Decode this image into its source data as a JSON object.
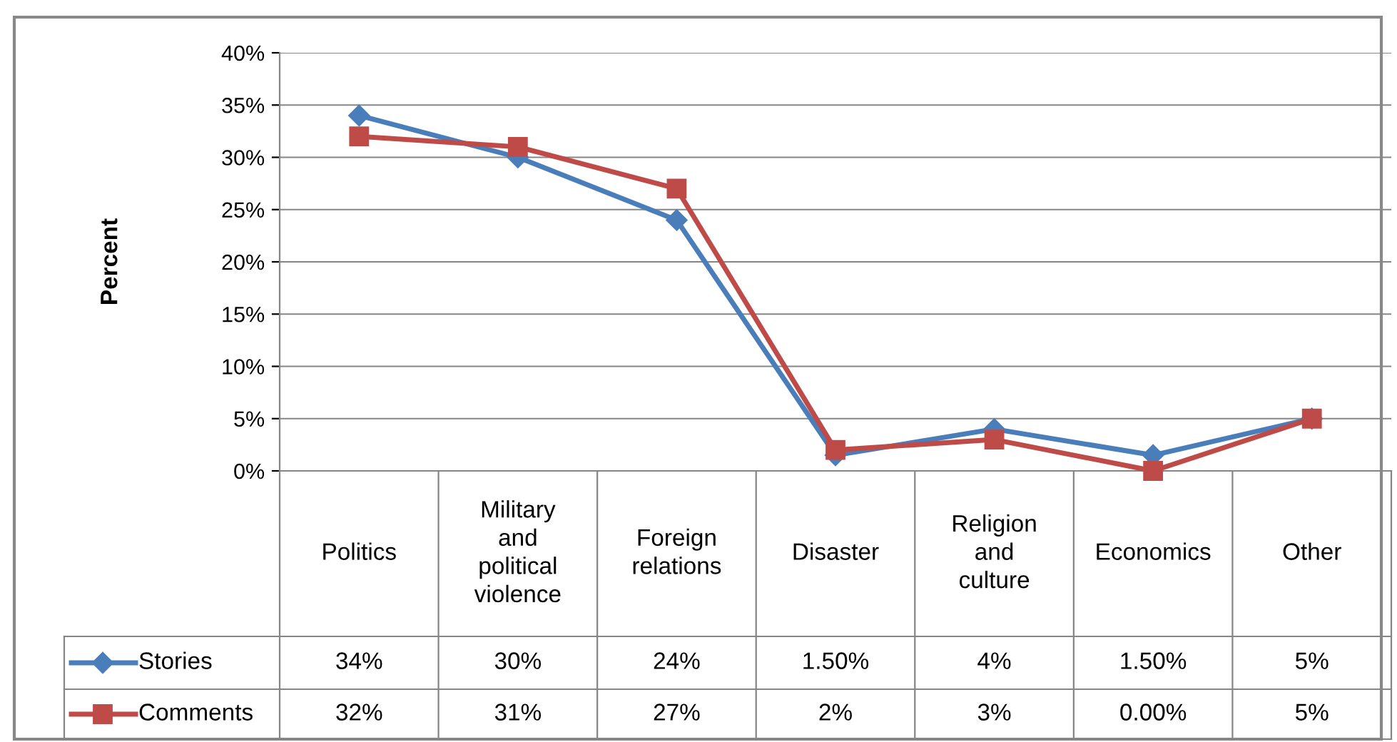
{
  "chart_data": {
    "type": "line",
    "ylabel": "Percent",
    "categories": [
      "Politics",
      "Military and political violence",
      "Foreign relations",
      "Disaster",
      "Religion and culture",
      "Economics",
      "Other"
    ],
    "series": [
      {
        "name": "Stories",
        "color": "#4a7ebb",
        "marker": "diamond",
        "values": [
          34,
          30,
          24,
          1.5,
          4,
          1.5,
          5
        ],
        "value_labels": [
          "34%",
          "30%",
          "24%",
          "1.50%",
          "4%",
          "1.50%",
          "5%"
        ]
      },
      {
        "name": "Comments",
        "color": "#be4b48",
        "marker": "square",
        "values": [
          32,
          31,
          27,
          2,
          3,
          0,
          5
        ],
        "value_labels": [
          "32%",
          "31%",
          "27%",
          "2%",
          "3%",
          "0.00%",
          "5%"
        ]
      }
    ],
    "ylim": [
      0,
      40
    ],
    "yticks": [
      {
        "value": 0,
        "label": "0%"
      },
      {
        "value": 5,
        "label": "5%"
      },
      {
        "value": 10,
        "label": "10%"
      },
      {
        "value": 15,
        "label": "15%"
      },
      {
        "value": 20,
        "label": "20%"
      },
      {
        "value": 25,
        "label": "25%"
      },
      {
        "value": 30,
        "label": "30%"
      },
      {
        "value": 35,
        "label": "35%"
      },
      {
        "value": 40,
        "label": "40%"
      }
    ],
    "grid": "y",
    "legend": "bottom"
  }
}
